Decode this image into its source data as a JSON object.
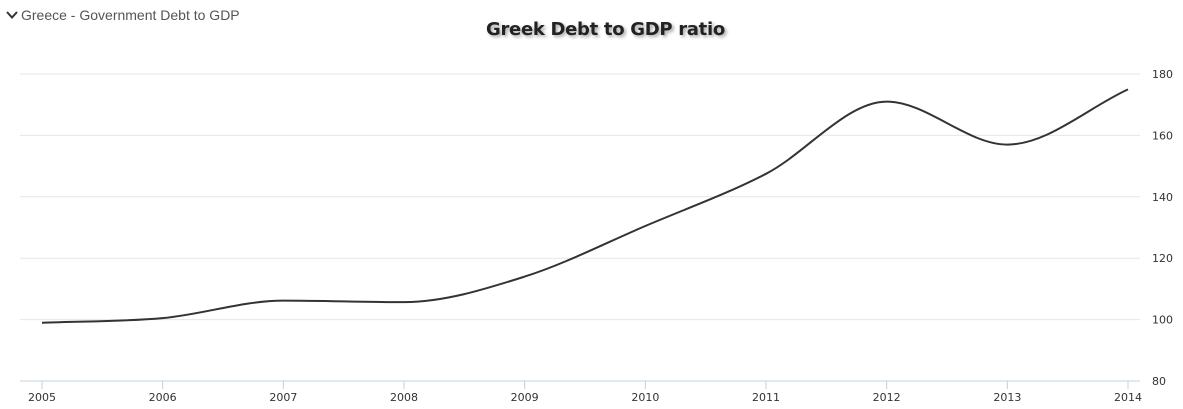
{
  "header": {
    "series_dropdown_label": "Greece - Government Debt to GDP",
    "dropdown_icon": "chevron-down-icon"
  },
  "chart_data": {
    "type": "line",
    "title": "Greek Debt to GDP ratio",
    "xlabel": "",
    "ylabel": "",
    "x": [
      2005,
      2006,
      2007,
      2008,
      2009,
      2010,
      2011,
      2012,
      2013,
      2014
    ],
    "series": [
      {
        "values": [
          99,
          100.5,
          106.2,
          105.7,
          114,
          130.5,
          147.5,
          171,
          157,
          175
        ],
        "color": "#333333"
      }
    ],
    "x_ticks": [
      "2005",
      "2006",
      "2007",
      "2008",
      "2009",
      "2010",
      "2011",
      "2012",
      "2013",
      "2014"
    ],
    "y_ticks": [
      "80",
      "100",
      "120",
      "140",
      "160",
      "180"
    ],
    "xlim": [
      2005,
      2014
    ],
    "ylim": [
      80,
      180
    ],
    "y_axis_side": "right",
    "grid": true,
    "colors": {
      "line": "#333333",
      "grid": "#e6e6e6",
      "x_axis": "#c0d0e0"
    }
  }
}
